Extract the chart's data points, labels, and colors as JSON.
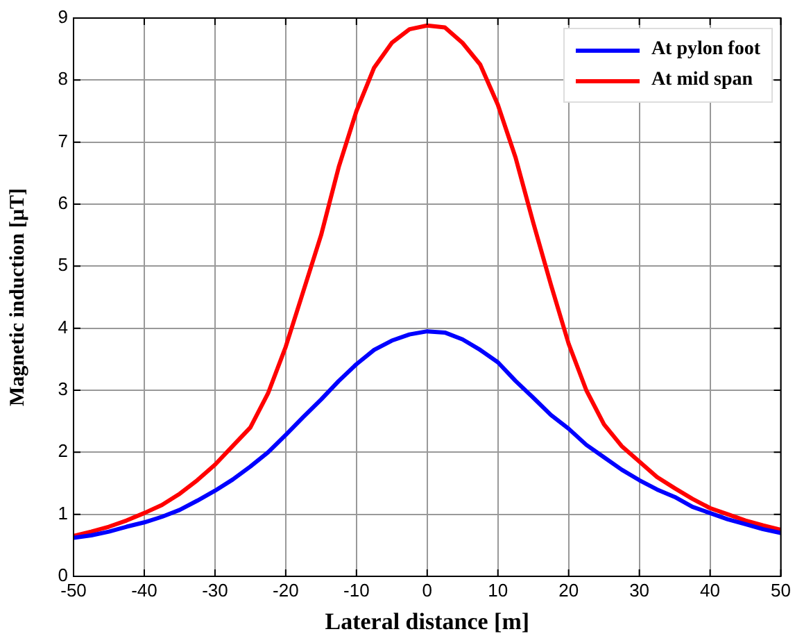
{
  "chart_data": {
    "type": "line",
    "xlabel": "Lateral distance [m]",
    "ylabel": "Magnetic induction [µT]",
    "x": [
      -50,
      -47.5,
      -45,
      -42.5,
      -40,
      -37.5,
      -35,
      -32.5,
      -30,
      -27.5,
      -25,
      -22.5,
      -20,
      -17.5,
      -15,
      -12.5,
      -10,
      -7.5,
      -5,
      -2.5,
      0,
      2.5,
      5,
      7.5,
      10,
      12.5,
      15,
      17.5,
      20,
      22.5,
      25,
      27.5,
      30,
      32.5,
      35,
      37.5,
      40,
      42.5,
      45,
      47.5,
      50
    ],
    "series": [
      {
        "name": "At pylon foot",
        "color": "#0000ff",
        "values": [
          0.62,
          0.66,
          0.72,
          0.8,
          0.87,
          0.96,
          1.07,
          1.22,
          1.38,
          1.56,
          1.77,
          2.0,
          2.28,
          2.57,
          2.85,
          3.15,
          3.42,
          3.65,
          3.8,
          3.9,
          3.95,
          3.93,
          3.82,
          3.65,
          3.45,
          3.15,
          2.88,
          2.6,
          2.38,
          2.12,
          1.92,
          1.72,
          1.55,
          1.4,
          1.28,
          1.12,
          1.02,
          0.92,
          0.84,
          0.76,
          0.7
        ]
      },
      {
        "name": "At mid span",
        "color": "#ff0000",
        "values": [
          0.65,
          0.72,
          0.8,
          0.9,
          1.02,
          1.15,
          1.33,
          1.55,
          1.8,
          2.1,
          2.4,
          2.95,
          3.7,
          4.6,
          5.5,
          6.6,
          7.5,
          8.2,
          8.6,
          8.82,
          8.88,
          8.85,
          8.6,
          8.25,
          7.6,
          6.75,
          5.7,
          4.7,
          3.75,
          3.0,
          2.45,
          2.1,
          1.85,
          1.6,
          1.42,
          1.25,
          1.1,
          1.0,
          0.9,
          0.82,
          0.75
        ]
      }
    ],
    "xlim": [
      -50,
      50
    ],
    "xticks": [
      -50,
      -40,
      -30,
      -20,
      -10,
      0,
      10,
      20,
      30,
      40,
      50
    ],
    "ylim": [
      0,
      9
    ],
    "yticks": [
      0,
      1,
      2,
      3,
      4,
      5,
      6,
      7,
      8,
      9
    ],
    "grid": true,
    "legend": "top right",
    "marker": "none",
    "line_style": "solid"
  }
}
